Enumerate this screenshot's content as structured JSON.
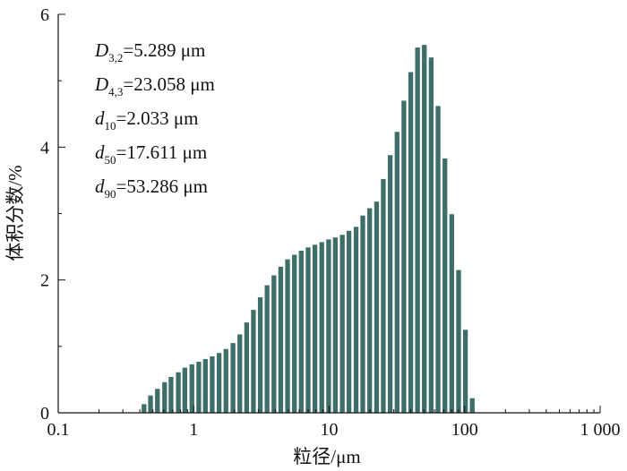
{
  "chart_data": {
    "type": "bar",
    "xlabel": "粒径/μm",
    "ylabel": "体积分数/%",
    "x_scale": "log",
    "xlim": [
      0.1,
      1000
    ],
    "ylim": [
      0,
      6
    ],
    "x_ticks": [
      0.1,
      1,
      10,
      100,
      1000
    ],
    "x_tick_labels": [
      "0.1",
      "1",
      "10",
      "100",
      "1 000"
    ],
    "y_ticks": [
      0,
      2,
      4,
      6
    ],
    "y_tick_labels": [
      "0",
      "2",
      "4",
      "6"
    ],
    "bar_color": "#3d6e68",
    "grid": false,
    "series": [
      {
        "x": [
          0.43,
          0.48,
          0.54,
          0.61,
          0.68,
          0.77,
          0.86,
          0.97,
          1.09,
          1.22,
          1.37,
          1.54,
          1.73,
          1.95,
          2.19,
          2.46,
          2.76,
          3.1,
          3.48,
          3.91,
          4.39,
          4.93,
          5.54,
          6.22,
          6.99,
          7.85,
          8.82,
          9.91,
          11.1,
          12.5,
          14.0,
          15.8,
          17.7,
          19.9,
          22.4,
          25.1,
          28.2,
          31.7,
          35.6,
          40.0,
          44.9,
          50.4,
          56.6,
          63.6,
          71.5,
          80.3,
          90.2,
          101.3,
          113.8
        ],
        "values": [
          0.13,
          0.26,
          0.36,
          0.46,
          0.54,
          0.61,
          0.68,
          0.73,
          0.77,
          0.81,
          0.85,
          0.9,
          0.96,
          1.05,
          1.18,
          1.36,
          1.55,
          1.74,
          1.92,
          2.07,
          2.2,
          2.31,
          2.38,
          2.44,
          2.49,
          2.53,
          2.57,
          2.61,
          2.64,
          2.68,
          2.74,
          2.8,
          2.97,
          3.08,
          3.18,
          3.52,
          3.88,
          4.23,
          4.7,
          5.13,
          5.5,
          5.54,
          5.35,
          4.62,
          3.83,
          2.99,
          2.15,
          1.25,
          0.22
        ]
      }
    ]
  },
  "annotations": [
    {
      "sym": "D",
      "sub": "3,2",
      "value": "=5.289 μm"
    },
    {
      "sym": "D",
      "sub": "4,3",
      "value": "=23.058 μm"
    },
    {
      "sym": "d",
      "sub": "10",
      "value": "=2.033 μm"
    },
    {
      "sym": "d",
      "sub": "50",
      "value": "=17.611 μm"
    },
    {
      "sym": "d",
      "sub": "90",
      "value": "=53.286 μm"
    }
  ]
}
